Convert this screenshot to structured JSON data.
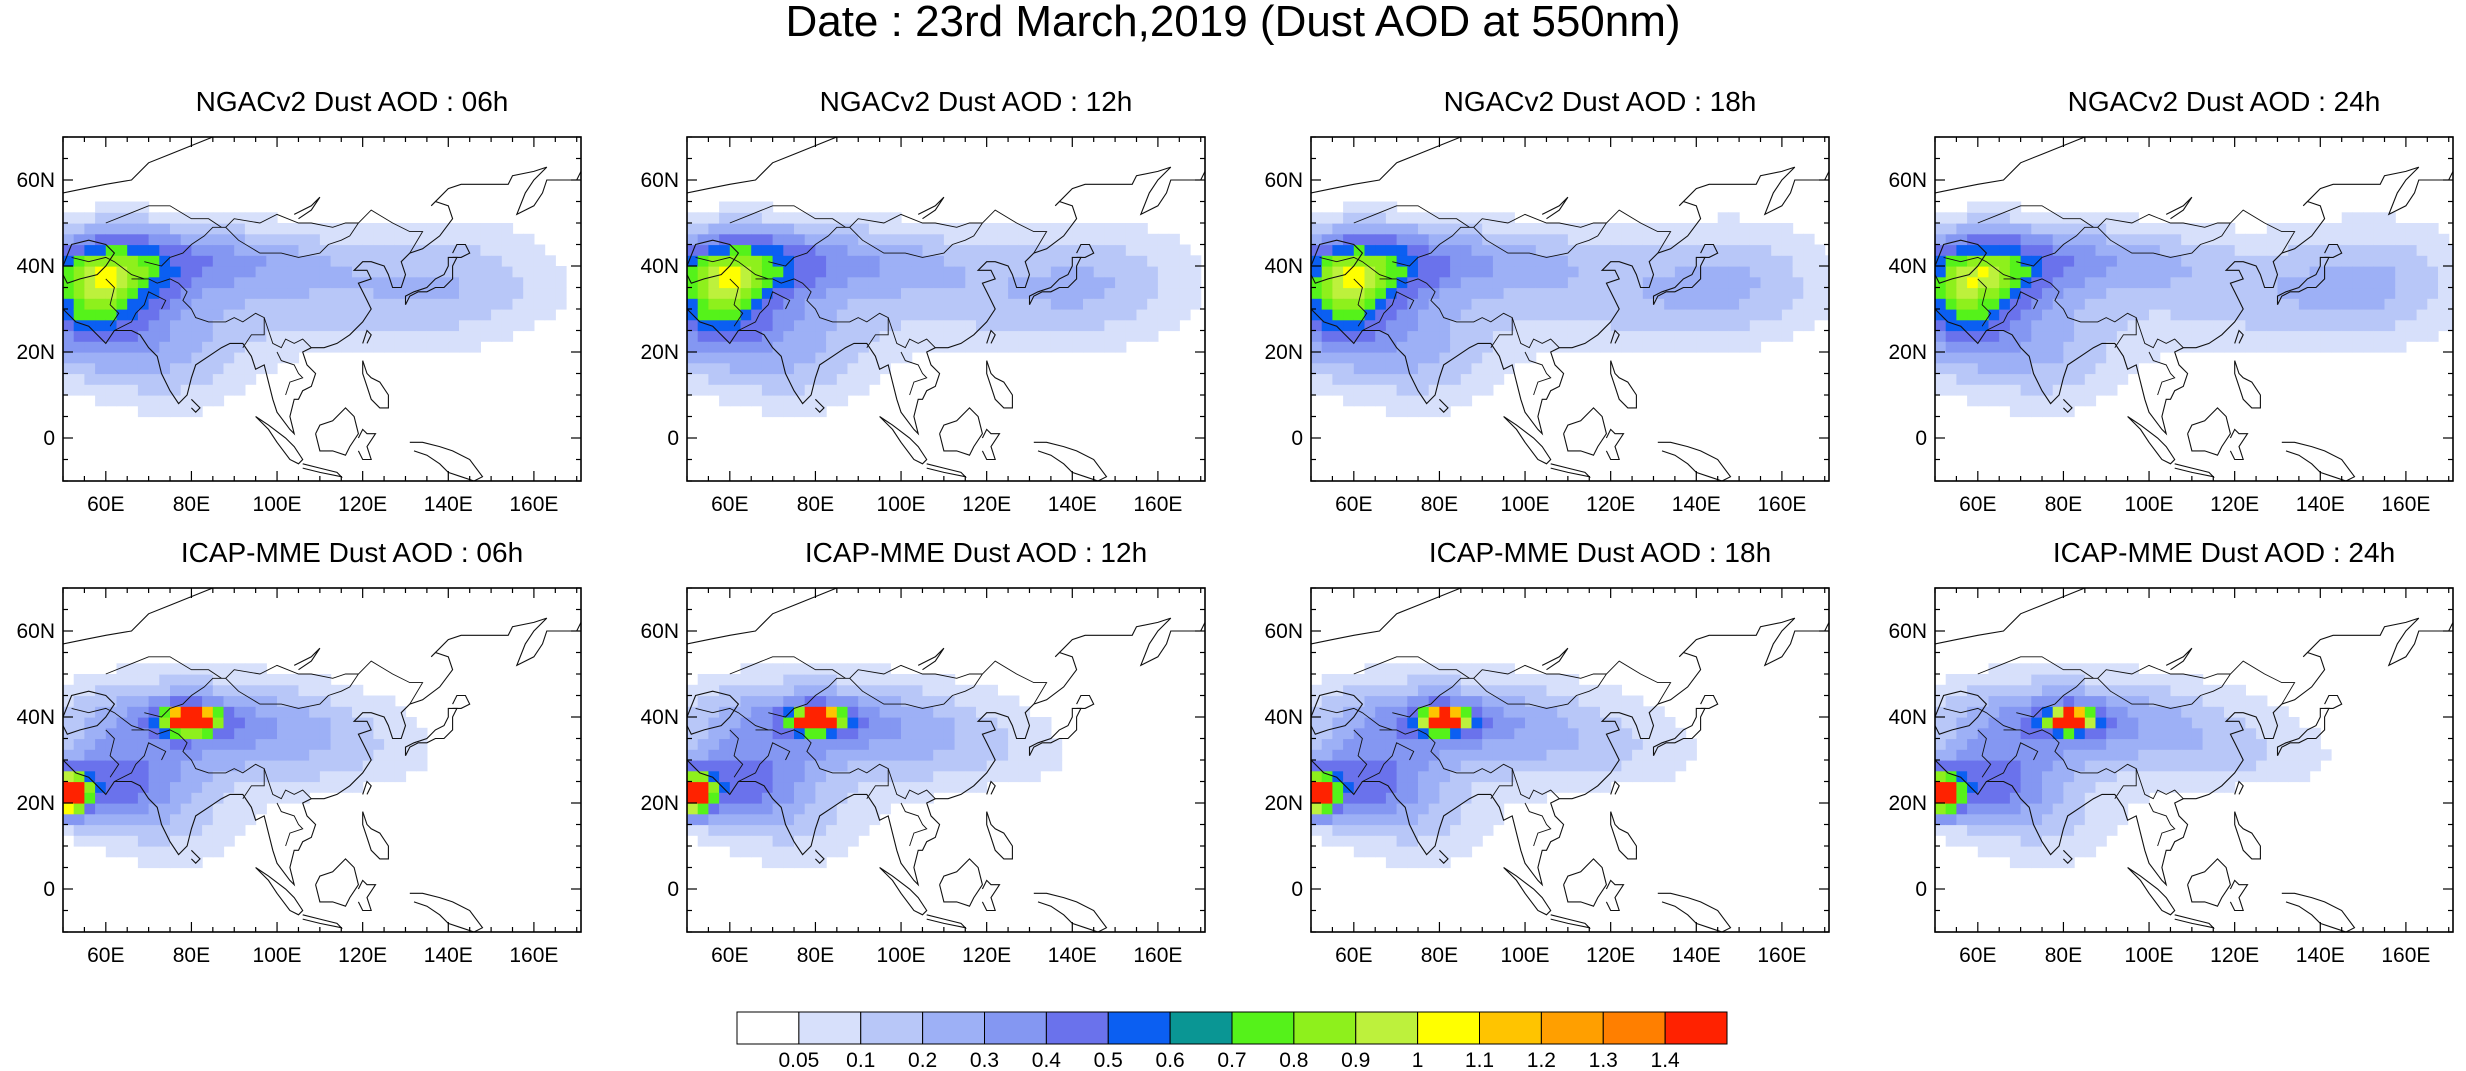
{
  "figure": {
    "title": "Date : 23rd March,2019 (Dust AOD at 550nm)"
  },
  "axes": {
    "lon_ticks": [
      "60E",
      "80E",
      "100E",
      "120E",
      "140E",
      "160E"
    ],
    "lat_ticks": [
      "60N",
      "40N",
      "20N",
      "0"
    ],
    "lon_range": [
      50,
      171
    ],
    "lat_range": [
      -10,
      70
    ]
  },
  "panels": [
    {
      "title": "NGACv2 Dust AOD : 06h",
      "model": "NGACv2",
      "hour": "06h"
    },
    {
      "title": "NGACv2 Dust AOD : 12h",
      "model": "NGACv2",
      "hour": "12h"
    },
    {
      "title": "NGACv2 Dust AOD : 18h",
      "model": "NGACv2",
      "hour": "18h"
    },
    {
      "title": "NGACv2 Dust AOD : 24h",
      "model": "NGACv2",
      "hour": "24h"
    },
    {
      "title": "ICAP-MME Dust AOD : 06h",
      "model": "ICAP-MME",
      "hour": "06h"
    },
    {
      "title": "ICAP-MME Dust AOD : 12h",
      "model": "ICAP-MME",
      "hour": "12h"
    },
    {
      "title": "ICAP-MME Dust AOD : 18h",
      "model": "ICAP-MME",
      "hour": "18h"
    },
    {
      "title": "ICAP-MME Dust AOD : 24h",
      "model": "ICAP-MME",
      "hour": "24h"
    }
  ],
  "colorbar": {
    "labels": [
      "0.05",
      "0.1",
      "0.2",
      "0.3",
      "0.4",
      "0.5",
      "0.6",
      "0.7",
      "0.8",
      "0.9",
      "1",
      "1.1",
      "1.2",
      "1.3",
      "1.4"
    ],
    "colors": [
      "#ffffff",
      "#d7e0fb",
      "#b8c7f8",
      "#9db0f6",
      "#8497f2",
      "#6a72ec",
      "#0b5ff2",
      "#0a9694",
      "#55f21a",
      "#8ef01c",
      "#bdf13c",
      "#ffff00",
      "#ffc400",
      "#ff9f00",
      "#ff7f00",
      "#ff2200"
    ]
  },
  "map_style": {
    "coast_color": "#111111",
    "frame_color": "#000000"
  }
}
